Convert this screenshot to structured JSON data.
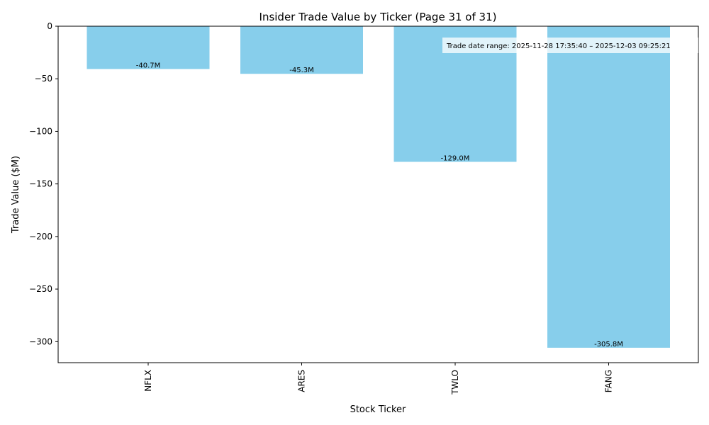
{
  "chart_data": {
    "type": "bar",
    "title": "Insider Trade Value by Ticker (Page 31 of 31)",
    "xlabel": "Stock Ticker",
    "ylabel": "Trade Value ($M)",
    "categories": [
      "NFLX",
      "ARES",
      "TWLO",
      "FANG"
    ],
    "values": [
      -40.7,
      -45.3,
      -129.0,
      -305.8
    ],
    "data_labels": [
      "-40.7M",
      "-45.3M",
      "-129.0M",
      "-305.8M"
    ],
    "ylim": [
      -320,
      0
    ],
    "yticks": [
      0,
      -50,
      -100,
      -150,
      -200,
      -250,
      -300
    ],
    "ytick_labels": [
      "0",
      "−50",
      "−100",
      "−150",
      "−200",
      "−250",
      "−300"
    ],
    "bar_color": "#87ceeb",
    "annotation": "Trade date range: 2025-11-28 17:35:40 – 2025-12-03 09:25:21",
    "annotation_placement": "top-right",
    "grid": false
  }
}
